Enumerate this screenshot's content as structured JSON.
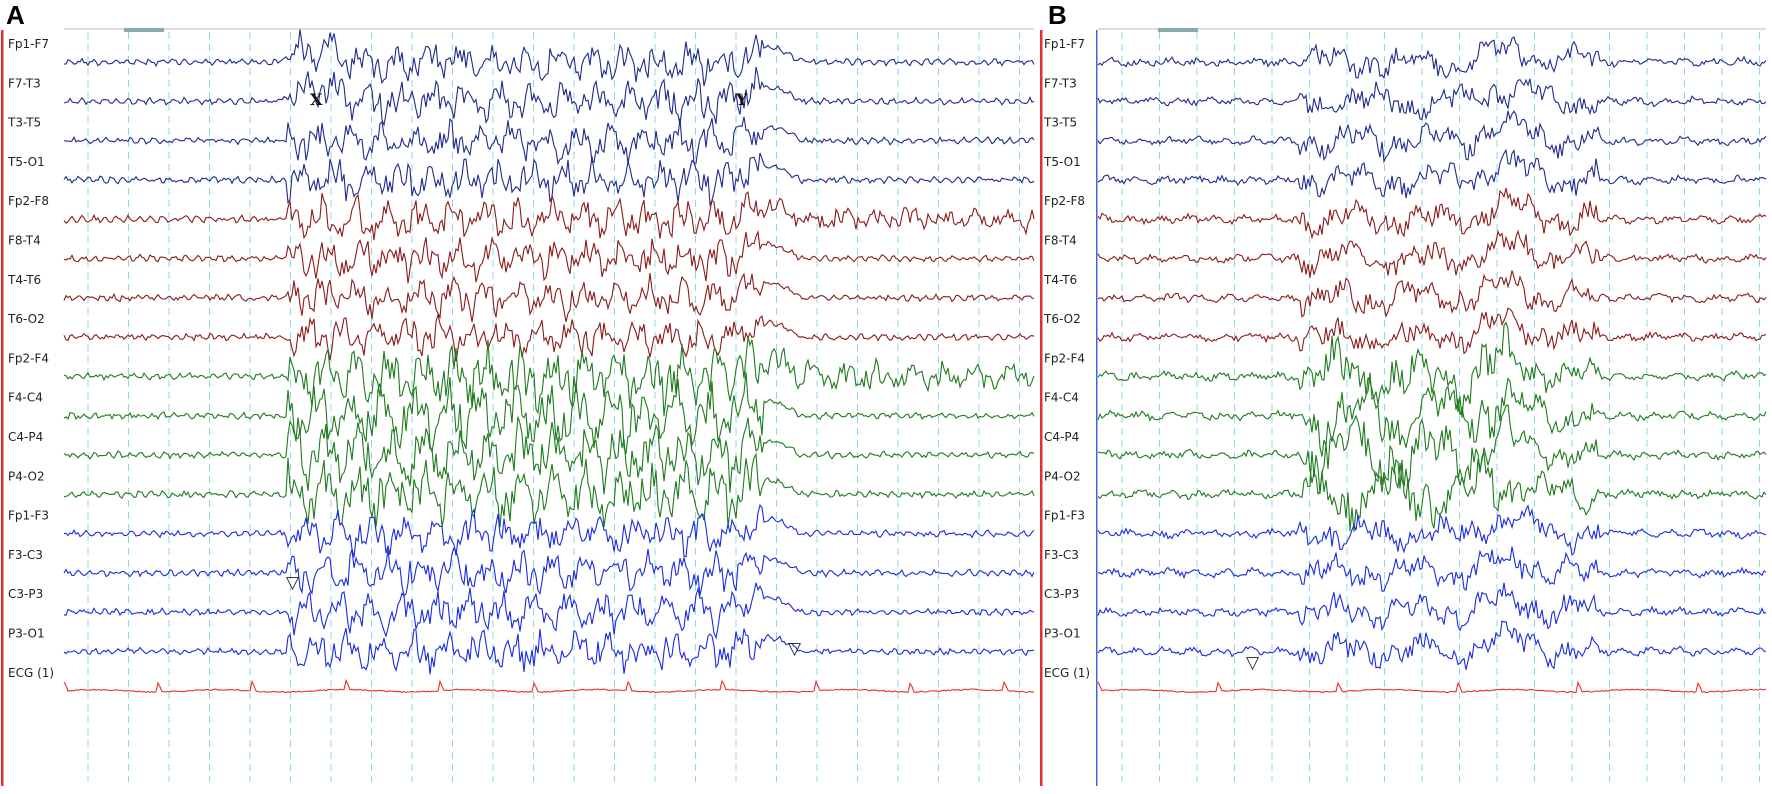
{
  "panels": [
    {
      "id": "A",
      "letter": "A",
      "channels": [
        "Fp1-F7",
        "F7-T3",
        "T3-T5",
        "T5-O1",
        "Fp2-F8",
        "F8-T4",
        "T4-T6",
        "T6-O2",
        "Fp2-F4",
        "F4-C4",
        "C4-P4",
        "P4-O2",
        "Fp1-F3",
        "F3-C3",
        "C3-P3",
        "P3-O1",
        "ECG (1)"
      ],
      "markers": {
        "x": "X",
        "y": "Y"
      },
      "arrowheads": [
        "▽",
        "▽"
      ]
    },
    {
      "id": "B",
      "letter": "B",
      "channels": [
        "Fp1-F7",
        "F7-T3",
        "T3-T5",
        "T5-O1",
        "Fp2-F8",
        "F8-T4",
        "T4-T6",
        "T6-O2",
        "Fp2-F4",
        "F4-C4",
        "C4-P4",
        "P4-O2",
        "Fp1-F3",
        "F3-C3",
        "C3-P3",
        "P3-O1",
        "ECG (1)"
      ],
      "arrowheads": [
        "▽"
      ]
    }
  ],
  "colors": {
    "left_temporal": "#1f2a8c",
    "right_temporal": "#8b1a1a",
    "right_parasagittal": "#1f7a1f",
    "left_parasagittal": "#1a2be0",
    "ecg": "#e8302a",
    "gridline": "#8fd8e0",
    "border": "#e03030"
  }
}
